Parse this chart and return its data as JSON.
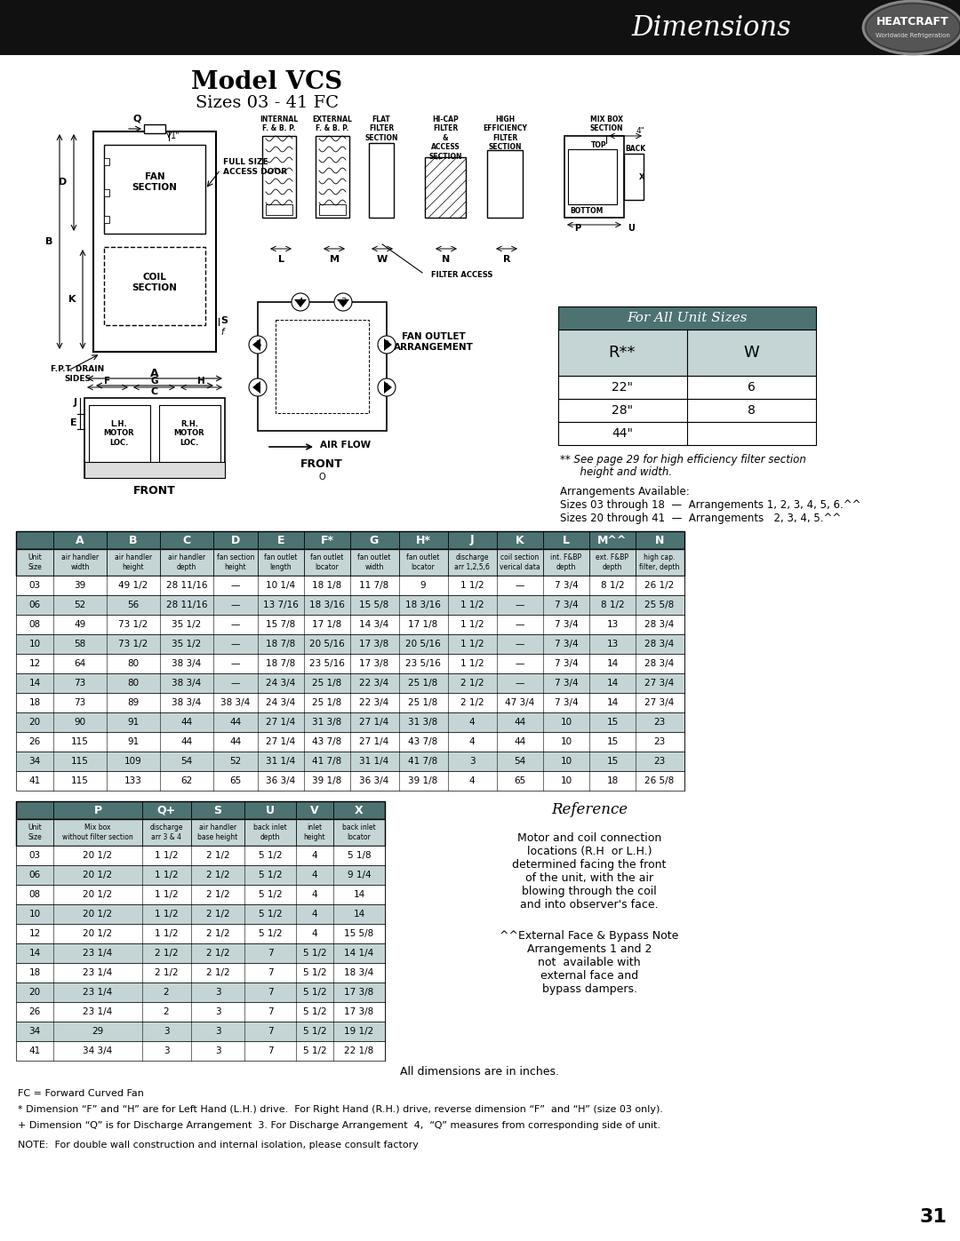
{
  "page_number": "31",
  "header_bg": "#111111",
  "header_title": "Dimensions",
  "model_title": "Model VCS",
  "model_subtitle": "Sizes 03 - 41 FC",
  "for_all_title": "For All Unit Sizes",
  "for_all_col1": "R**",
  "for_all_col2": "W",
  "for_all_rows": [
    [
      "22\"",
      "6"
    ],
    [
      "28\"",
      "8"
    ],
    [
      "44\"",
      ""
    ]
  ],
  "for_all_note1": "** See page 29 for high efficiency filter section",
  "for_all_note2": "      height and width.",
  "arrangements": "Arrangements Available:\nSizes 03 through 18  —  Arrangements 1, 2, 3, 4, 5, 6.^^\nSizes 20 through 41  —  Arrangements   2, 3, 4, 5.^^",
  "tbl_hdr_bg": "#4d7272",
  "tbl_alt_bg": "#c5d5d5",
  "tbl_white": "#ffffff",
  "main_col_letters": [
    "",
    "A",
    "B",
    "C",
    "D",
    "E",
    "F*",
    "G",
    "H*",
    "J",
    "K",
    "L",
    "M^^",
    "N"
  ],
  "main_col_sub": [
    "Unit\nSize",
    "air handler\nwidth",
    "air handler\nheight",
    "air handler\ndepth",
    "fan section\nheight",
    "fan outlet\nlength",
    "fan outlet\nlocator",
    "fan outlet\nwidth",
    "fan outlet\nlocator",
    "discharge\narr 1,2,5,6",
    "coil section\nverical data",
    "int. F&BP\ndepth",
    "ext. F&BP\ndepth",
    "high cap.\nfilter, depth"
  ],
  "main_col_widths": [
    42,
    60,
    60,
    60,
    50,
    52,
    52,
    55,
    55,
    55,
    52,
    52,
    52,
    55
  ],
  "unit_sizes": [
    "03",
    "06",
    "08",
    "10",
    "12",
    "14",
    "18",
    "20",
    "26",
    "34",
    "41"
  ],
  "main_data": [
    [
      "39",
      "49 1/2",
      "28 11/16",
      "—",
      "10 1/4",
      "18 1/8",
      "11 7/8",
      "9",
      "1 1/2",
      "—",
      "7 3/4",
      "8 1/2",
      "26 1/2"
    ],
    [
      "52",
      "56",
      "28 11/16",
      "—",
      "13 7/16",
      "18 3/16",
      "15 5/8",
      "18 3/16",
      "1 1/2",
      "—",
      "7 3/4",
      "8 1/2",
      "25 5/8"
    ],
    [
      "49",
      "73 1/2",
      "35 1/2",
      "—",
      "15 7/8",
      "17 1/8",
      "14 3/4",
      "17 1/8",
      "1 1/2",
      "—",
      "7 3/4",
      "13",
      "28 3/4"
    ],
    [
      "58",
      "73 1/2",
      "35 1/2",
      "—",
      "18 7/8",
      "20 5/16",
      "17 3/8",
      "20 5/16",
      "1 1/2",
      "—",
      "7 3/4",
      "13",
      "28 3/4"
    ],
    [
      "64",
      "80",
      "38 3/4",
      "—",
      "18 7/8",
      "23 5/16",
      "17 3/8",
      "23 5/16",
      "1 1/2",
      "—",
      "7 3/4",
      "14",
      "28 3/4"
    ],
    [
      "73",
      "80",
      "38 3/4",
      "—",
      "24 3/4",
      "25 1/8",
      "22 3/4",
      "25 1/8",
      "2 1/2",
      "—",
      "7 3/4",
      "14",
      "27 3/4"
    ],
    [
      "73",
      "89",
      "38 3/4",
      "38 3/4",
      "24 3/4",
      "25 1/8",
      "22 3/4",
      "25 1/8",
      "2 1/2",
      "47 3/4",
      "7 3/4",
      "14",
      "27 3/4"
    ],
    [
      "90",
      "91",
      "44",
      "44",
      "27 1/4",
      "31 3/8",
      "27 1/4",
      "31 3/8",
      "4",
      "44",
      "10",
      "15",
      "23"
    ],
    [
      "115",
      "91",
      "44",
      "44",
      "27 1/4",
      "43 7/8",
      "27 1/4",
      "43 7/8",
      "4",
      "44",
      "10",
      "15",
      "23"
    ],
    [
      "115",
      "109",
      "54",
      "52",
      "31 1/4",
      "41 7/8",
      "31 1/4",
      "41 7/8",
      "3",
      "54",
      "10",
      "15",
      "23"
    ],
    [
      "115",
      "133",
      "62",
      "65",
      "36 3/4",
      "39 1/8",
      "36 3/4",
      "39 1/8",
      "4",
      "65",
      "10",
      "18",
      "26 5/8"
    ]
  ],
  "lower_col_letters": [
    "",
    "P",
    "Q+",
    "S",
    "U",
    "V",
    "X"
  ],
  "lower_col_sub": [
    "Unit\nSize",
    "Mix box\nwithout filter section",
    "discharge\narr 3 & 4",
    "air handler\nbase height",
    "back inlet\ndepth",
    "inlet\nheight",
    "back inlet\nlocator"
  ],
  "lower_col_widths": [
    42,
    100,
    55,
    60,
    58,
    42,
    58
  ],
  "lower_data": [
    [
      "20 1/2",
      "1 1/2",
      "2 1/2",
      "5 1/2",
      "4",
      "5 1/8"
    ],
    [
      "20 1/2",
      "1 1/2",
      "2 1/2",
      "5 1/2",
      "4",
      "9 1/4"
    ],
    [
      "20 1/2",
      "1 1/2",
      "2 1/2",
      "5 1/2",
      "4",
      "14"
    ],
    [
      "20 1/2",
      "1 1/2",
      "2 1/2",
      "5 1/2",
      "4",
      "14"
    ],
    [
      "20 1/2",
      "1 1/2",
      "2 1/2",
      "5 1/2",
      "4",
      "15 5/8"
    ],
    [
      "23 1/4",
      "2 1/2",
      "2 1/2",
      "7",
      "5 1/2",
      "14 1/4"
    ],
    [
      "23 1/4",
      "2 1/2",
      "2 1/2",
      "7",
      "5 1/2",
      "18 3/4"
    ],
    [
      "23 1/4",
      "2",
      "3",
      "7",
      "5 1/2",
      "17 3/8"
    ],
    [
      "23 1/4",
      "2",
      "3",
      "7",
      "5 1/2",
      "17 3/8"
    ],
    [
      "29",
      "3",
      "3",
      "7",
      "5 1/2",
      "19 1/2"
    ],
    [
      "34 3/4",
      "3",
      "3",
      "7",
      "5 1/2",
      "22 1/8"
    ]
  ],
  "reference_title": "Reference",
  "reference_body": "Motor and coil connection\nlocations (R.H  or L.H.)\ndetermined facing the front\nof the unit, with the air\nblowing through the coil\nand into observer's face.",
  "reference_note": "^^External Face & Bypass Note\nArrangements 1 and 2\nnot  available with\nexternal face and\nbypass dampers.",
  "fn_all_dims": "All dimensions are in inches.",
  "fn_fc": "FC = Forward Curved Fan",
  "fn_star": "* Dimension “F” and “H” are for Left Hand (L.H.) drive.  For Right Hand (R.H.) drive, reverse dimension “F”  and “H” (size 03 only).",
  "fn_plus": "+ Dimension “Q” is for Discharge Arrangement  3. For Discharge Arrangement  4,  “Q” measures from corresponding side of unit.",
  "fn_note": "NOTE:  For double wall construction and internal isolation, please consult factory"
}
